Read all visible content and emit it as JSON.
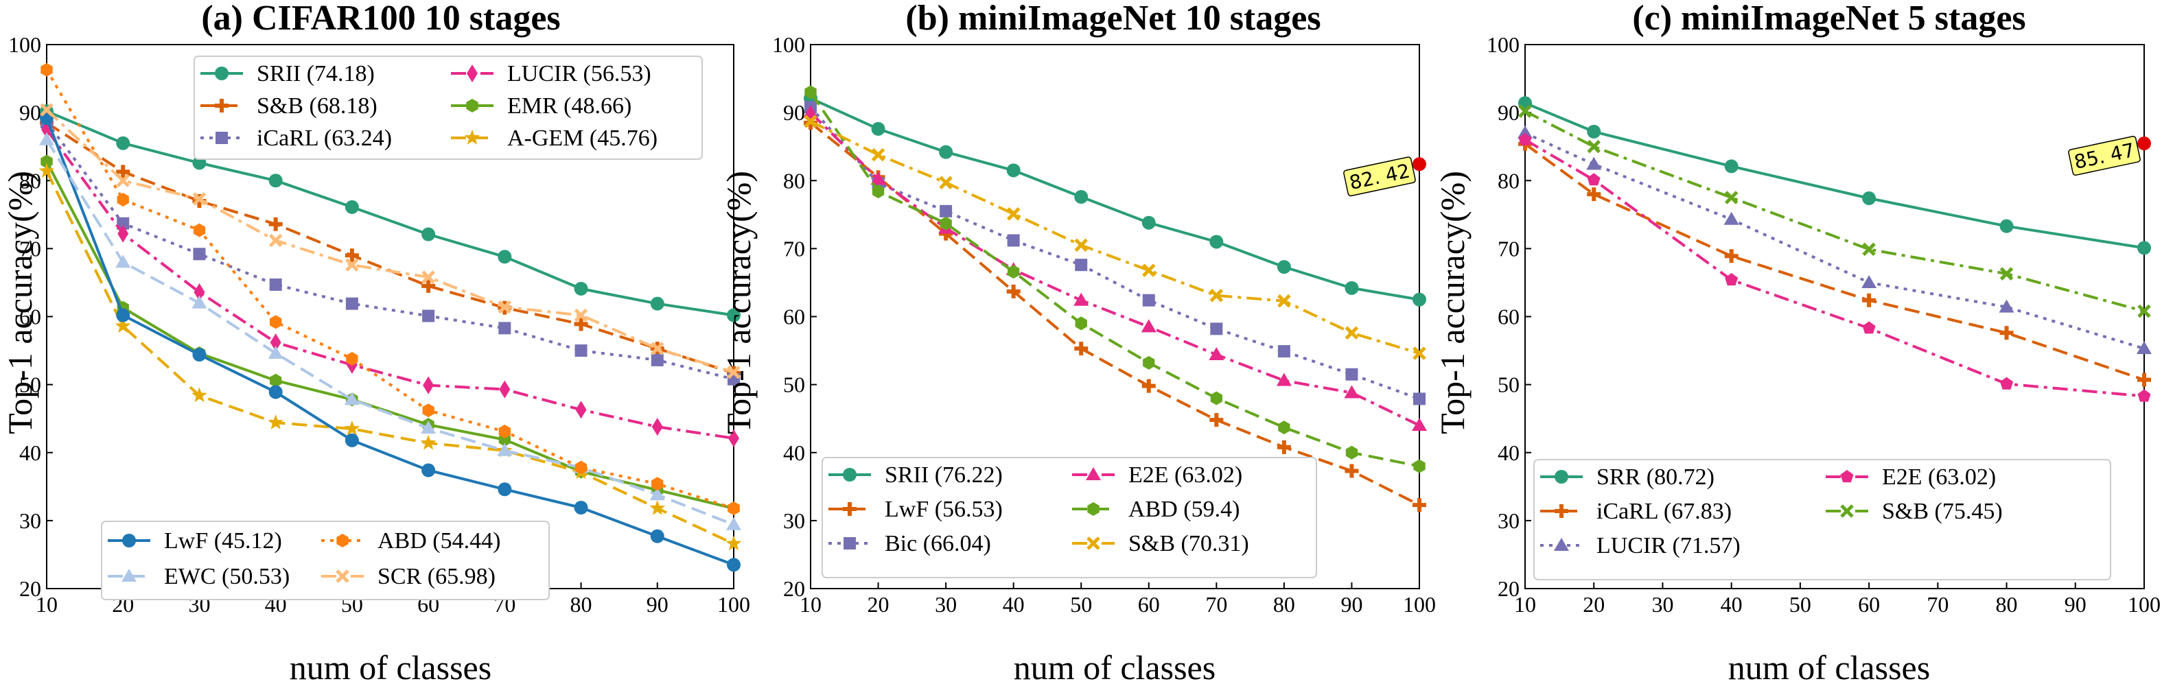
{
  "chart_data": [
    {
      "type": "line",
      "title": "(a) CIFAR100 10 stages",
      "xlabel": "num of classes",
      "ylabel": "Top-1 accuracy(%)",
      "xlim": [
        10,
        100
      ],
      "ylim": [
        20,
        100
      ],
      "x_ticks": [
        10,
        20,
        30,
        40,
        50,
        60,
        70,
        80,
        90,
        100
      ],
      "y_ticks": [
        20,
        30,
        40,
        50,
        60,
        70,
        80,
        90,
        100
      ],
      "grid": false,
      "legends": [
        {
          "placement": "top-center",
          "columns": 2,
          "entries": [
            0,
            1,
            2,
            3,
            4,
            5
          ]
        },
        {
          "placement": "lower-left",
          "columns": 2,
          "entries": [
            6,
            7,
            8,
            9
          ]
        }
      ],
      "series": [
        {
          "name": "SRII (74.18)",
          "color": "#2a9d78",
          "dash": "solid",
          "marker": "circle",
          "x": [
            10,
            20,
            30,
            40,
            50,
            60,
            70,
            80,
            90,
            100
          ],
          "values": [
            90.2,
            85.5,
            82.6,
            80,
            76.1,
            72.1,
            68.8,
            64.1,
            61.9,
            60.2
          ]
        },
        {
          "name": "S&B (68.18)",
          "color": "#d95f02",
          "dash": "dashed",
          "marker": "plus",
          "x": [
            10,
            20,
            30,
            40,
            50,
            60,
            70,
            80,
            90,
            100
          ],
          "values": [
            88.5,
            81.3,
            77,
            73.6,
            69,
            64.5,
            61.3,
            58.9,
            55.3,
            51.7
          ]
        },
        {
          "name": "iCaRL (63.24)",
          "color": "#7570b3",
          "dash": "dotted",
          "marker": "square",
          "x": [
            10,
            20,
            30,
            40,
            50,
            60,
            70,
            80,
            90,
            100
          ],
          "values": [
            88.6,
            73.7,
            69.2,
            64.7,
            61.9,
            60.1,
            58.3,
            55,
            53.6,
            50.8
          ]
        },
        {
          "name": "LUCIR (56.53)",
          "color": "#e7298a",
          "dash": "dashdot",
          "marker": "diamond",
          "x": [
            10,
            20,
            30,
            40,
            50,
            60,
            70,
            80,
            90,
            100
          ],
          "values": [
            87.5,
            72.2,
            63.6,
            56.2,
            52.9,
            49.9,
            49.3,
            46.3,
            43.8,
            42.1
          ]
        },
        {
          "name": "EMR (48.66)",
          "color": "#66a61e",
          "dash": "solid",
          "marker": "hexagon",
          "x": [
            10,
            20,
            30,
            40,
            50,
            60,
            70,
            80,
            90,
            100
          ],
          "values": [
            82.8,
            61.3,
            54.6,
            50.6,
            47.8,
            44.1,
            41.9,
            37.2,
            34.5,
            31.8
          ]
        },
        {
          "name": "A-GEM (45.76)",
          "color": "#e6ab02",
          "dash": "dashed",
          "marker": "star",
          "x": [
            10,
            20,
            30,
            40,
            50,
            60,
            70,
            80,
            90,
            100
          ],
          "values": [
            81.4,
            58.6,
            48.4,
            44.4,
            43.5,
            41.4,
            40.3,
            37.1,
            31.8,
            26.6
          ]
        },
        {
          "name": "LwF (45.12)",
          "color": "#1f77b4",
          "dash": "solid",
          "marker": "circle",
          "x": [
            10,
            20,
            30,
            40,
            50,
            60,
            70,
            80,
            90,
            100
          ],
          "values": [
            89.2,
            60.2,
            54.4,
            48.9,
            41.8,
            37.4,
            34.6,
            31.9,
            27.7,
            23.5
          ]
        },
        {
          "name": "EWC (50.53)",
          "color": "#aec7e8",
          "dash": "dashed",
          "marker": "triangle",
          "x": [
            10,
            20,
            30,
            40,
            50,
            60,
            70,
            80,
            90,
            100
          ],
          "values": [
            86,
            68,
            62,
            54.6,
            47.8,
            43.6,
            40.3,
            37.8,
            33.8,
            29.4
          ]
        },
        {
          "name": "ABD (54.44)",
          "color": "#ff7f0e",
          "dash": "dotted",
          "marker": "hexagon",
          "x": [
            10,
            20,
            30,
            40,
            50,
            60,
            70,
            80,
            90,
            100
          ],
          "values": [
            96.3,
            77.2,
            72.7,
            59.2,
            53.8,
            46.2,
            43.1,
            37.8,
            35.4,
            31.8
          ]
        },
        {
          "name": "SCR (65.98)",
          "color": "#ffbb78",
          "dash": "dashdot",
          "marker": "x",
          "x": [
            10,
            20,
            30,
            40,
            50,
            60,
            70,
            80,
            90,
            100
          ],
          "values": [
            90.4,
            80,
            77.3,
            71.2,
            67.6,
            65.8,
            61.4,
            60.2,
            55.3,
            51.8
          ]
        }
      ],
      "annotation": null
    },
    {
      "type": "line",
      "title": "(b) miniImageNet 10 stages",
      "xlabel": "num of classes",
      "ylabel": "Top-1 accuracy(%)",
      "xlim": [
        10,
        100
      ],
      "ylim": [
        20,
        100
      ],
      "x_ticks": [
        10,
        20,
        30,
        40,
        50,
        60,
        70,
        80,
        90,
        100
      ],
      "y_ticks": [
        20,
        30,
        40,
        50,
        60,
        70,
        80,
        90,
        100
      ],
      "grid": false,
      "legends": [
        {
          "placement": "lower-left",
          "columns": 2,
          "entries": [
            0,
            1,
            2,
            3,
            4,
            5
          ]
        }
      ],
      "series": [
        {
          "name": "SRII (76.22)",
          "color": "#2a9d78",
          "dash": "solid",
          "marker": "circle",
          "x": [
            10,
            20,
            30,
            40,
            50,
            60,
            70,
            80,
            90,
            100
          ],
          "values": [
            92.1,
            87.6,
            84.2,
            81.5,
            77.6,
            73.8,
            71,
            67.3,
            64.2,
            62.5
          ]
        },
        {
          "name": "LwF (56.53)",
          "color": "#d95f02",
          "dash": "dashed",
          "marker": "plus",
          "x": [
            10,
            20,
            30,
            40,
            50,
            60,
            70,
            80,
            90,
            100
          ],
          "values": [
            88.5,
            80.5,
            72.2,
            63.7,
            55.3,
            49.8,
            44.8,
            40.8,
            37.3,
            32.3
          ]
        },
        {
          "name": "Bic (66.04)",
          "color": "#7570b3",
          "dash": "dotted",
          "marker": "square",
          "x": [
            10,
            20,
            30,
            40,
            50,
            60,
            70,
            80,
            90,
            100
          ],
          "values": [
            90.8,
            79.6,
            75.5,
            71.2,
            67.6,
            62.4,
            58.2,
            54.9,
            51.5,
            47.9
          ]
        },
        {
          "name": "E2E (63.02)",
          "color": "#e7298a",
          "dash": "dashdot",
          "marker": "triangle",
          "x": [
            10,
            20,
            30,
            40,
            50,
            60,
            70,
            80,
            90,
            100
          ],
          "values": [
            90,
            80.2,
            73,
            66.9,
            62.4,
            58.5,
            54.4,
            50.6,
            48.8,
            44
          ]
        },
        {
          "name": "ABD (59.4)",
          "color": "#66a61e",
          "dash": "dashed",
          "marker": "hexagon",
          "x": [
            10,
            20,
            30,
            40,
            50,
            60,
            70,
            80,
            90,
            100
          ],
          "values": [
            93,
            78.4,
            73.7,
            66.6,
            59,
            53.2,
            48,
            43.7,
            40,
            38
          ]
        },
        {
          "name": "S&B (70.31)",
          "color": "#e6ab02",
          "dash": "dashdot",
          "marker": "x",
          "x": [
            10,
            20,
            30,
            40,
            50,
            60,
            70,
            80,
            90,
            100
          ],
          "values": [
            88.7,
            83.8,
            79.7,
            75.1,
            70.5,
            66.8,
            63.1,
            62.3,
            57.6,
            54.6
          ]
        }
      ],
      "annotation": {
        "label": "82. 42",
        "x": 100,
        "y": 82.42
      }
    },
    {
      "type": "line",
      "title": "(c) miniImageNet 5 stages",
      "xlabel": "num of classes",
      "ylabel": "Top-1 accuracy(%)",
      "xlim": [
        10,
        100
      ],
      "ylim": [
        20,
        100
      ],
      "x_ticks": [
        10,
        20,
        30,
        40,
        50,
        60,
        70,
        80,
        90,
        100
      ],
      "y_ticks": [
        20,
        30,
        40,
        50,
        60,
        70,
        80,
        90,
        100
      ],
      "grid": false,
      "legends": [
        {
          "placement": "lower-left",
          "columns": 2,
          "entries": [
            0,
            1,
            2,
            3,
            4
          ]
        }
      ],
      "series": [
        {
          "name": "SRR (80.72)",
          "color": "#2a9d78",
          "dash": "solid",
          "marker": "circle",
          "x": [
            10,
            20,
            40,
            60,
            80,
            100
          ],
          "values": [
            91.4,
            87.2,
            82.1,
            77.4,
            73.3,
            70.1
          ]
        },
        {
          "name": "iCaRL (67.83)",
          "color": "#d95f02",
          "dash": "dashed",
          "marker": "plus",
          "x": [
            10,
            20,
            40,
            60,
            80,
            100
          ],
          "values": [
            85.4,
            78,
            68.9,
            62.4,
            57.6,
            50.7
          ]
        },
        {
          "name": "LUCIR (71.57)",
          "color": "#7570b3",
          "dash": "dotted",
          "marker": "triangle",
          "x": [
            10,
            20,
            40,
            60,
            80,
            100
          ],
          "values": [
            87,
            82.4,
            74.3,
            65,
            61.4,
            55.3
          ]
        },
        {
          "name": "E2E (63.02)",
          "color": "#e7298a",
          "dash": "dashdot",
          "marker": "pentagon",
          "x": [
            10,
            20,
            40,
            60,
            80,
            100
          ],
          "values": [
            86,
            80.1,
            65.4,
            58.3,
            50.1,
            48.3
          ]
        },
        {
          "name": "S&B (75.45)",
          "color": "#66a61e",
          "dash": "dashdot",
          "marker": "x",
          "x": [
            10,
            20,
            40,
            60,
            80,
            100
          ],
          "values": [
            90.2,
            85,
            77.5,
            69.9,
            66.3,
            60.8
          ]
        }
      ],
      "annotation": {
        "label": "85. 47",
        "x": 100,
        "y": 85.47
      }
    }
  ]
}
